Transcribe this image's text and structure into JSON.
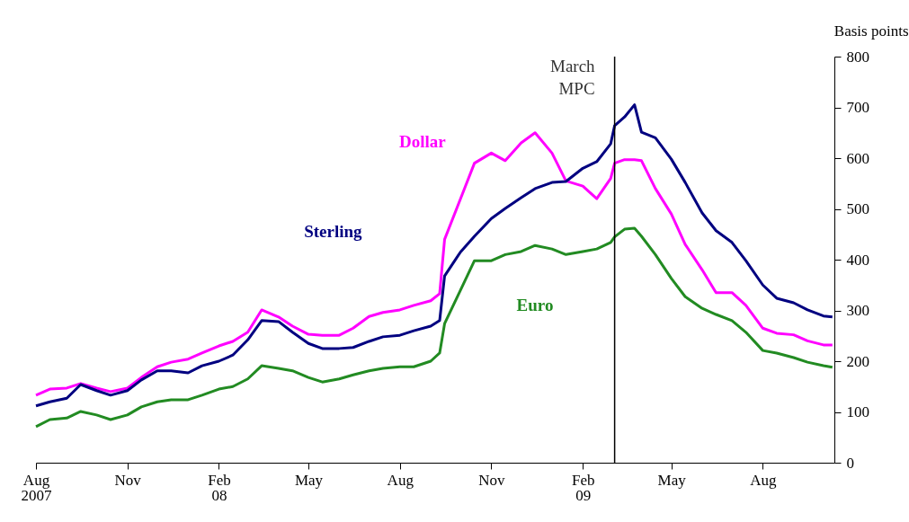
{
  "chart_data": {
    "type": "line",
    "ylabel": "Basis points",
    "x": [
      "2007-08-01",
      "2007-08-15",
      "2007-09-01",
      "2007-09-15",
      "2007-10-01",
      "2007-10-15",
      "2007-11-01",
      "2007-11-15",
      "2007-12-01",
      "2007-12-15",
      "2008-01-01",
      "2008-01-15",
      "2008-02-01",
      "2008-02-15",
      "2008-03-01",
      "2008-03-15",
      "2008-04-01",
      "2008-04-15",
      "2008-05-01",
      "2008-05-15",
      "2008-06-01",
      "2008-06-15",
      "2008-07-01",
      "2008-07-15",
      "2008-08-01",
      "2008-08-15",
      "2008-09-01",
      "2008-09-10",
      "2008-09-15",
      "2008-10-01",
      "2008-10-15",
      "2008-11-01",
      "2008-11-15",
      "2008-12-01",
      "2008-12-15",
      "2009-01-01",
      "2009-01-15",
      "2009-02-01",
      "2009-02-15",
      "2009-03-01",
      "2009-03-05",
      "2009-03-15",
      "2009-03-25",
      "2009-04-01",
      "2009-04-15",
      "2009-05-01",
      "2009-05-15",
      "2009-06-01",
      "2009-06-15",
      "2009-07-01",
      "2009-07-15",
      "2009-08-01",
      "2009-08-15",
      "2009-09-01",
      "2009-09-15",
      "2009-10-01",
      "2009-10-10"
    ],
    "series": [
      {
        "name": "Dollar",
        "color": "#ff00ff",
        "values": [
          133,
          145,
          147,
          156,
          147,
          140,
          147,
          168,
          189,
          198,
          204,
          216,
          230,
          239,
          257,
          301,
          287,
          269,
          253,
          251,
          251,
          265,
          288,
          296,
          301,
          310,
          319,
          333,
          440,
          520,
          590,
          610,
          595,
          630,
          650,
          610,
          555,
          545,
          520,
          560,
          590,
          597,
          597,
          595,
          540,
          490,
          430,
          380,
          335,
          335,
          310,
          265,
          255,
          252,
          240,
          232,
          232
        ]
      },
      {
        "name": "Sterling",
        "color": "#000080",
        "values": [
          112,
          120,
          127,
          154,
          142,
          133,
          142,
          163,
          181,
          181,
          177,
          191,
          200,
          212,
          242,
          280,
          278,
          257,
          235,
          225,
          225,
          227,
          239,
          248,
          251,
          260,
          269,
          280,
          368,
          415,
          446,
          481,
          501,
          522,
          540,
          552,
          554,
          580,
          593,
          628,
          664,
          681,
          705,
          651,
          640,
          598,
          552,
          492,
          457,
          434,
          398,
          350,
          324,
          315,
          301,
          289,
          287
        ]
      },
      {
        "name": "Euro",
        "color": "#228b22",
        "values": [
          71,
          85,
          88,
          101,
          94,
          85,
          94,
          110,
          120,
          124,
          124,
          133,
          145,
          150,
          165,
          191,
          186,
          181,
          168,
          159,
          165,
          173,
          181,
          186,
          189,
          189,
          200,
          216,
          274,
          340,
          398,
          398,
          410,
          416,
          428,
          421,
          410,
          416,
          421,
          434,
          445,
          460,
          462,
          446,
          410,
          363,
          327,
          304,
          292,
          280,
          257,
          221,
          216,
          207,
          198,
          191,
          188
        ]
      }
    ],
    "xlim": [
      "2007-08-01",
      "2009-10-12"
    ],
    "xticks": [
      {
        "value": "2007-08-01",
        "label": "Aug\n2007"
      },
      {
        "value": "2007-11-01",
        "label": "Nov"
      },
      {
        "value": "2008-02-01",
        "label": "Feb\n08"
      },
      {
        "value": "2008-05-01",
        "label": "May"
      },
      {
        "value": "2008-08-01",
        "label": "Aug"
      },
      {
        "value": "2008-11-01",
        "label": "Nov"
      },
      {
        "value": "2009-02-01",
        "label": "Feb\n09"
      },
      {
        "value": "2009-05-01",
        "label": "May"
      },
      {
        "value": "2009-08-01",
        "label": "Aug"
      }
    ],
    "ylim": [
      0,
      800
    ],
    "yticks": [
      0,
      100,
      200,
      300,
      400,
      500,
      600,
      700,
      800
    ],
    "ref_lines": [
      {
        "axis": "x",
        "value": "2009-03-05",
        "label": "March\nMPC",
        "color": "#000000"
      }
    ],
    "grid": false,
    "line_style": "solid",
    "marker": "none"
  }
}
